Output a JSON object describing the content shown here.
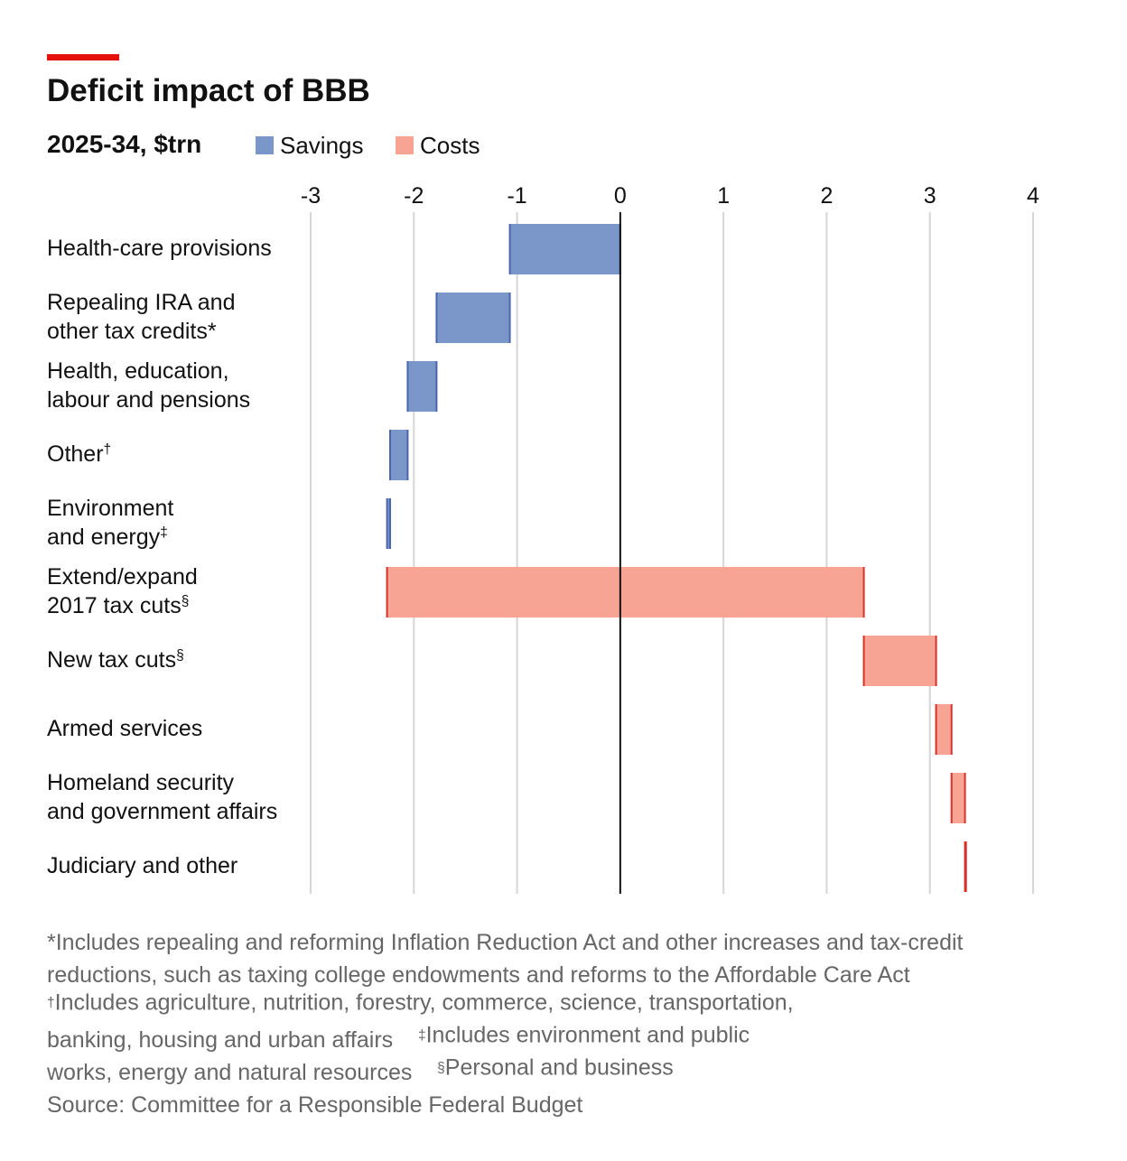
{
  "chart_data": {
    "type": "waterfall",
    "title": "Deficit impact of BBB",
    "subtitle": "2025-34, $trn",
    "legend": [
      {
        "name": "Savings",
        "color": "#7b96c8"
      },
      {
        "name": "Costs",
        "color": "#f7a494"
      }
    ],
    "categories": [
      [
        "Health-care provisions"
      ],
      [
        "Repealing IRA and",
        "other tax credits*"
      ],
      [
        "Health, education,",
        "labour and pensions"
      ],
      [
        "Other†"
      ],
      [
        "Environment",
        "and energy‡"
      ],
      [
        "Extend/expand",
        "2017 tax cuts§"
      ],
      [
        "New tax cuts§"
      ],
      [
        "Armed services"
      ],
      [
        "Homeland security",
        "and government affairs"
      ],
      [
        "Judiciary and other"
      ]
    ],
    "values": [
      -1.07,
      -0.71,
      -0.28,
      -0.17,
      -0.03,
      4.62,
      0.7,
      0.15,
      0.13,
      0.01
    ],
    "xlim": [
      -3,
      4
    ],
    "xticks": [
      -3,
      -2,
      -1,
      0,
      1,
      2,
      3,
      4
    ],
    "grid": true,
    "footnotes": [
      "*Includes repealing and reforming Inflation Reduction Act and other increases and tax-credit",
      "reductions, such as taxing college endowments and reforms to the Affordable Care Act",
      "†Includes agriculture, nutrition, forestry, commerce, science, transportation,",
      "banking, housing and urban affairs    ‡Includes environment and public",
      "works, energy and natural resources    §Personal and business"
    ],
    "source": "Source: Committee for a Responsible Federal Budget"
  }
}
